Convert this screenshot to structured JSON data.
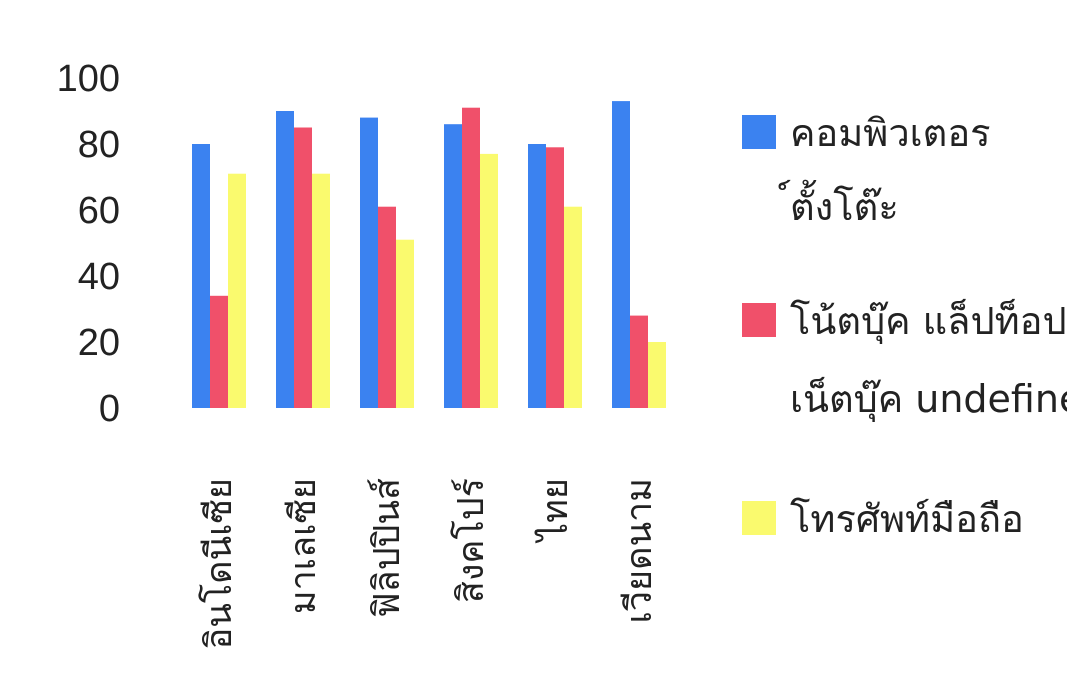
{
  "chart_data": {
    "type": "bar",
    "title": "",
    "xlabel": "",
    "ylabel": "",
    "ylim": [
      0,
      100
    ],
    "yticks": [
      0,
      20,
      40,
      60,
      80,
      100
    ],
    "categories": [
      "อินโดนีเซีย",
      "มาเลเซีย",
      "ฟิลิปปินส์",
      "สิงคโปร์",
      "ไทย",
      "เวียดนาม"
    ],
    "series": [
      {
        "name": "คอมพิวเตอร์ตั้งโต๊ะ",
        "color": "#3b82f0",
        "values": [
          80,
          90,
          88,
          86,
          80,
          93
        ]
      },
      {
        "name": "โน้ตบุ๊ค แล็ปท็อป เน็ตบุ๊ค",
        "color": "#f0506a",
        "values": [
          34,
          85,
          61,
          91,
          79,
          28
        ]
      },
      {
        "name": "โทรศัพท์มือถือ",
        "color": "#fafa6e",
        "values": [
          71,
          71,
          51,
          77,
          61,
          20
        ]
      }
    ],
    "grid": false,
    "legend_position": "right"
  }
}
